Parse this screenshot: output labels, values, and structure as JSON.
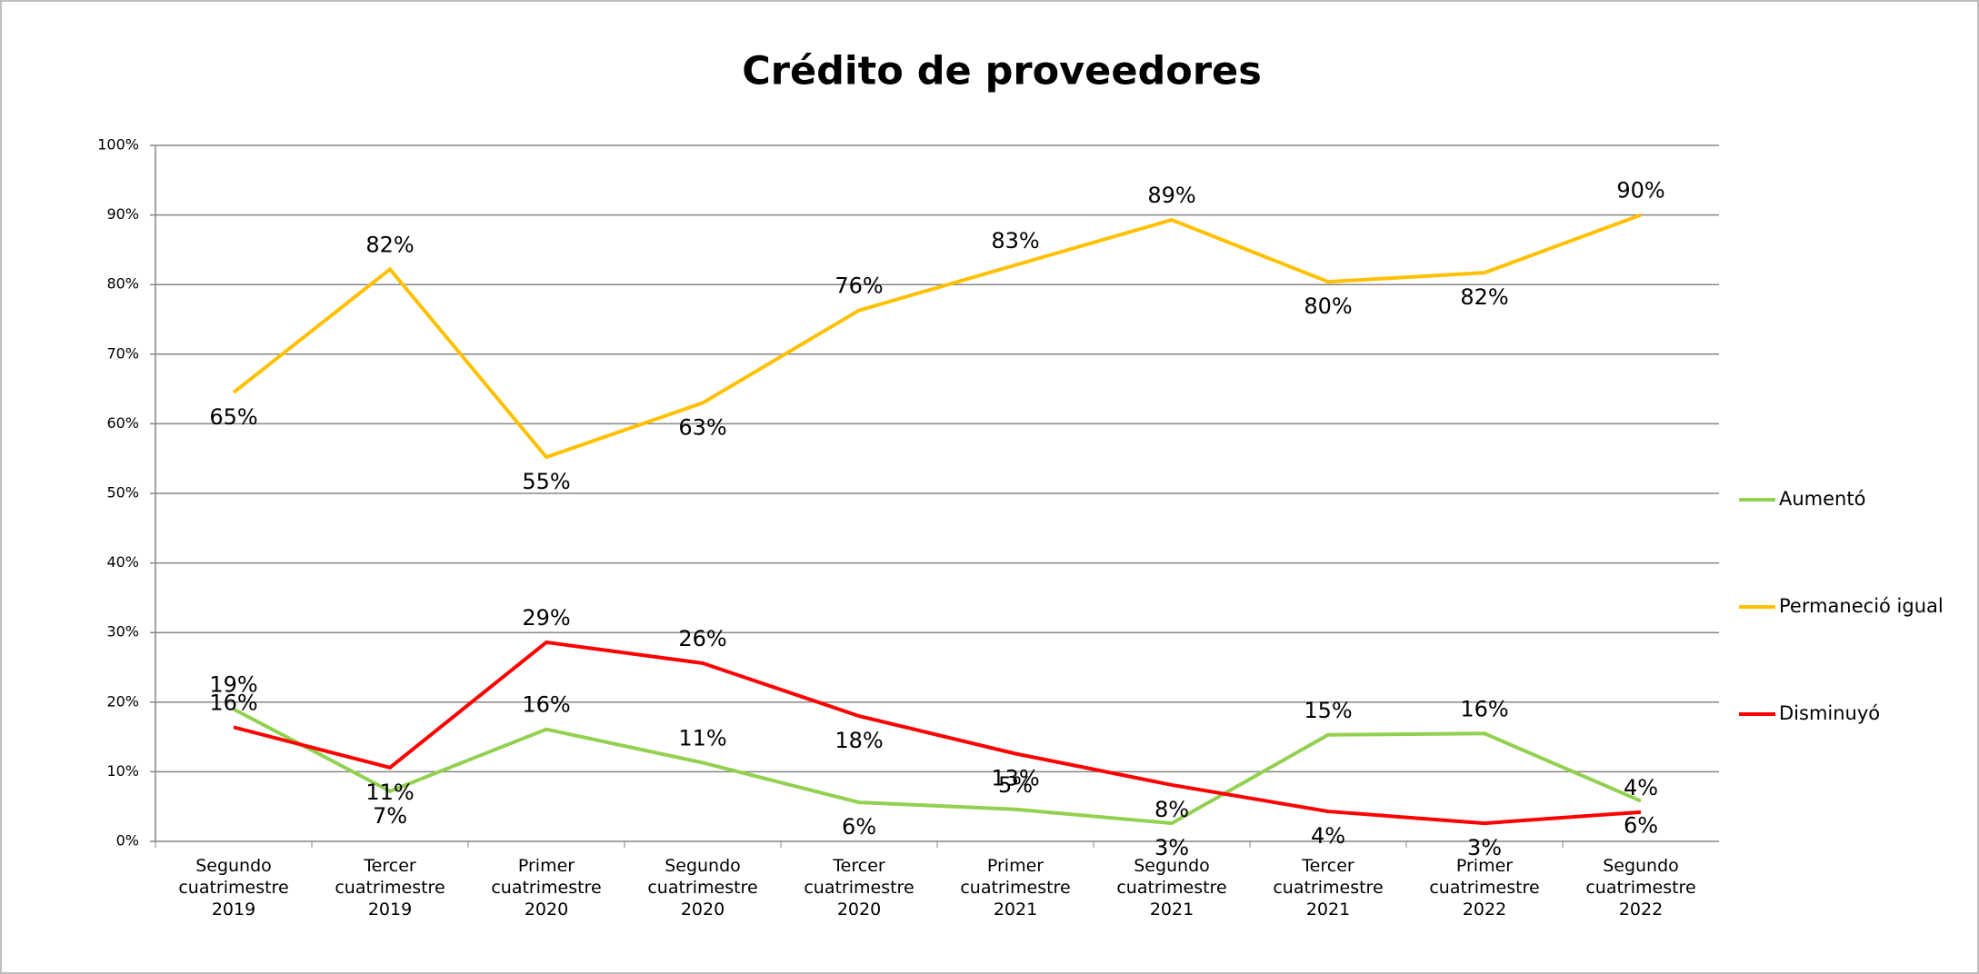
{
  "chart_data": {
    "type": "line",
    "title": "Crédito de proveedores",
    "categories": [
      "Segundo cuatrimestre 2019",
      "Tercer cuatrimestre 2019",
      "Primer cuatrimestre 2020",
      "Segundo cuatrimestre 2020",
      "Tercer cuatrimestre 2020",
      "Primer cuatrimestre 2021",
      "Segundo cuatrimestre 2021",
      "Tercer cuatrimestre 2021",
      "Primer cuatrimestre 2022",
      "Segundo cuatrimestre 2022"
    ],
    "series": [
      {
        "name": "Aumentó",
        "color": "#92d050",
        "values": [
          19.0,
          7.2,
          16.1,
          11.3,
          5.6,
          4.6,
          2.6,
          15.3,
          15.5,
          5.8
        ],
        "value_labels": [
          "19%",
          "7%",
          "16%",
          "11%",
          "6%",
          "5%",
          "3%",
          "15%",
          "16%",
          "6%"
        ]
      },
      {
        "name": "Permaneció igual",
        "color": "#ffc000",
        "values": [
          64.5,
          82.2,
          55.2,
          63.0,
          76.3,
          82.8,
          89.3,
          80.4,
          81.7,
          90.0
        ],
        "value_labels": [
          "65%",
          "82%",
          "55%",
          "63%",
          "76%",
          "83%",
          "89%",
          "80%",
          "82%",
          "90%"
        ]
      },
      {
        "name": "Disminuyó",
        "color": "#ff0000",
        "values": [
          16.4,
          10.6,
          28.6,
          25.6,
          18.0,
          12.6,
          8.1,
          4.3,
          2.6,
          4.2
        ],
        "value_labels": [
          "16%",
          "11%",
          "29%",
          "26%",
          "18%",
          "13%",
          "8%",
          "4%",
          "3%",
          "4%"
        ]
      }
    ],
    "ylim": [
      0,
      100
    ],
    "yticks": [
      {
        "value": 0,
        "label": "0%"
      },
      {
        "value": 10,
        "label": "10%"
      },
      {
        "value": 20,
        "label": "20%"
      },
      {
        "value": 30,
        "label": "30%"
      },
      {
        "value": 40,
        "label": "40%"
      },
      {
        "value": 50,
        "label": "50%"
      },
      {
        "value": 60,
        "label": "60%"
      },
      {
        "value": 70,
        "label": "70%"
      },
      {
        "value": 80,
        "label": "80%"
      },
      {
        "value": 90,
        "label": "90%"
      },
      {
        "value": 100,
        "label": "100%"
      }
    ],
    "grid": true,
    "legend": "right"
  }
}
